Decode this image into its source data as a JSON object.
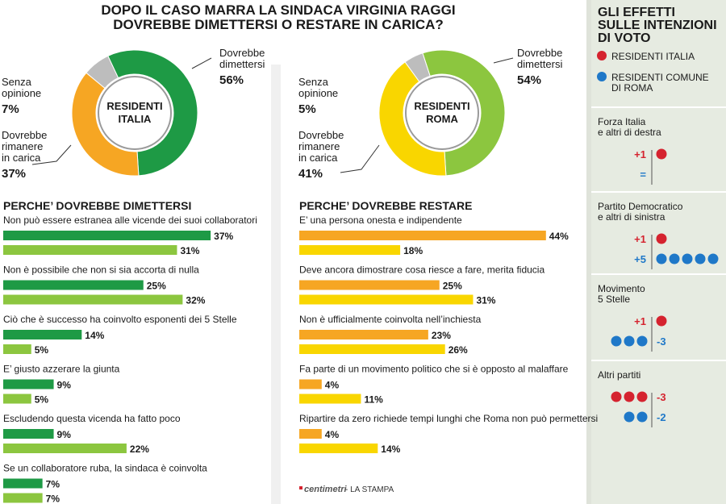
{
  "title_lines": [
    "DOPO IL CASO MARRA LA SINDACA VIRGINIA RAGGI",
    "DOVREBBE DIMETTERSI O RESTARE IN CARICA?"
  ],
  "colors": {
    "italia_dimettersi": "#1e9a45",
    "italia_rimanere": "#f6a623",
    "roma_dimettersi": "#8cc63f",
    "roma_rimanere": "#f9d600",
    "senza_opinione": "#bdbdbd",
    "bar_italia_dim": "#1e9a45",
    "bar_roma_dim": "#8cc63f",
    "bar_italia_rest": "#f6a623",
    "bar_roma_rest": "#f9d600",
    "red_dot": "#d5232f",
    "blue_dot": "#1f78c8",
    "sidebar_bg": "#e6ebe1"
  },
  "chart_data": [
    {
      "type": "pie",
      "center_label_lines": [
        "RESIDENTI",
        "ITALIA"
      ],
      "slices": [
        {
          "label_lines": [
            "Dovrebbe",
            "dimettersi"
          ],
          "value": 56,
          "value_text": "56%",
          "color": "#1e9a45"
        },
        {
          "label_lines": [
            "Dovrebbe",
            "rimanere",
            "in carica"
          ],
          "value": 37,
          "value_text": "37%",
          "color": "#f6a623"
        },
        {
          "label_lines": [
            "Senza",
            "opinione"
          ],
          "value": 7,
          "value_text": "7%",
          "color": "#bdbdbd"
        }
      ]
    },
    {
      "type": "pie",
      "center_label_lines": [
        "RESIDENTI",
        "ROMA"
      ],
      "slices": [
        {
          "label_lines": [
            "Dovrebbe",
            "dimettersi"
          ],
          "value": 54,
          "value_text": "54%",
          "color": "#8cc63f"
        },
        {
          "label_lines": [
            "Dovrebbe",
            "rimanere",
            "in carica"
          ],
          "value": 41,
          "value_text": "41%",
          "color": "#f9d600"
        },
        {
          "label_lines": [
            "Senza",
            "opinione"
          ],
          "value": 5,
          "value_text": "5%",
          "color": "#bdbdbd"
        }
      ]
    },
    {
      "type": "bar",
      "title": "PERCHE’ DOVREBBE DIMETTERSI",
      "categories": [
        "Non può essere estranea alle vicende dei suoi collaboratori",
        "Non è possibile che non si sia accorta di nulla",
        "Ciò che è successo ha coinvolto esponenti dei 5 Stelle",
        "E’ giusto azzerare la giunta",
        "Escludendo questa vicenda ha fatto poco",
        "Se un collaboratore ruba, la sindaca è coinvolta"
      ],
      "series": [
        {
          "values": [
            37,
            25,
            14,
            9,
            9,
            7
          ],
          "color": "#1e9a45"
        },
        {
          "values": [
            31,
            32,
            5,
            5,
            22,
            7
          ],
          "color": "#8cc63f"
        }
      ]
    },
    {
      "type": "bar",
      "title": "PERCHE’ DOVREBBE RESTARE",
      "categories": [
        "E’ una persona onesta e indipendente",
        "Deve ancora dimostrare cosa riesce a fare, merita fiducia",
        "Non è ufficialmente coinvolta nell’inchiesta",
        "Fa parte di un movimento politico che si è opposto al malaffare",
        "Ripartire da zero richiede tempi lunghi che Roma non può permettersi"
      ],
      "series": [
        {
          "values": [
            44,
            25,
            23,
            4,
            4
          ],
          "color": "#f6a623"
        },
        {
          "values": [
            18,
            31,
            26,
            11,
            14
          ],
          "color": "#f9d600"
        }
      ]
    }
  ],
  "source": {
    "brand": "centimetri",
    "text": " - LA STAMPA"
  },
  "sidebar": {
    "title_lines": [
      "GLI EFFETTI",
      "SULLE INTENZIONI",
      "DI VOTO"
    ],
    "legend": [
      {
        "label_lines": [
          "RESIDENTI ITALIA"
        ],
        "color": "#d5232f"
      },
      {
        "label_lines": [
          "RESIDENTI COMUNE",
          "DI ROMA"
        ],
        "color": "#1f78c8"
      }
    ],
    "parties": [
      {
        "name_lines": [
          "Forza Italia",
          "e altri di destra"
        ],
        "italia": {
          "text": "+1",
          "dots": 1
        },
        "roma": {
          "text": "=",
          "dots": 0
        }
      },
      {
        "name_lines": [
          "Partito Democratico",
          "e altri di sinistra"
        ],
        "italia": {
          "text": "+1",
          "dots": 1
        },
        "roma": {
          "text": "+5",
          "dots": 5
        }
      },
      {
        "name_lines": [
          "Movimento",
          "5 Stelle"
        ],
        "italia": {
          "text": "+1",
          "dots": 1
        },
        "roma": {
          "text": "-3",
          "dots": 3
        }
      },
      {
        "name_lines": [
          "Altri partiti"
        ],
        "italia": {
          "text": "-3",
          "dots": 3
        },
        "roma": {
          "text": "-2",
          "dots": 2
        }
      }
    ]
  }
}
